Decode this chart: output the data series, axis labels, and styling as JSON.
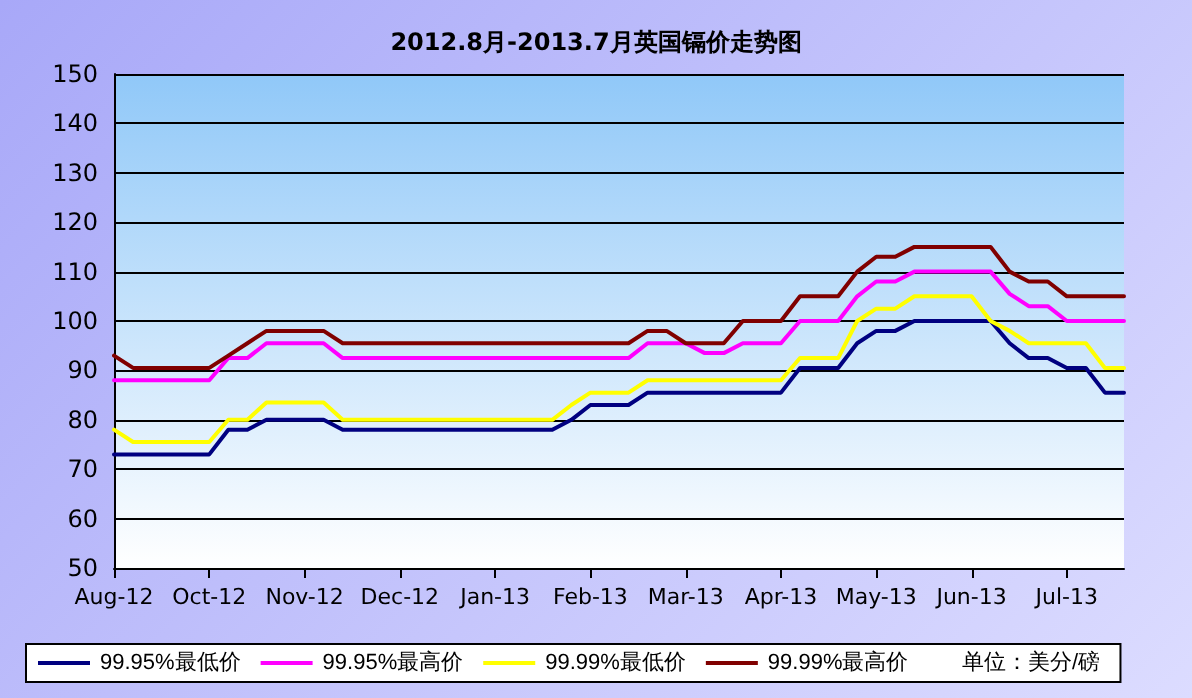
{
  "chart_data": {
    "type": "line",
    "title": "2012.8月-2013.7月英国镉价走势图",
    "categories": [
      "Aug-12",
      null,
      null,
      null,
      null,
      "Oct-12",
      null,
      null,
      null,
      null,
      "Nov-12",
      null,
      null,
      null,
      null,
      "Dec-12",
      null,
      null,
      null,
      null,
      "Jan-13",
      null,
      null,
      null,
      null,
      "Feb-13",
      null,
      null,
      null,
      null,
      "Mar-13",
      null,
      null,
      null,
      null,
      "Apr-13",
      null,
      null,
      null,
      null,
      "May-13",
      null,
      null,
      null,
      null,
      "Jun-13",
      null,
      null,
      null,
      null,
      "Jul-13",
      null,
      null,
      null
    ],
    "series": [
      {
        "name": "99.95%最低价",
        "color": "#000080",
        "values": [
          73,
          73,
          73,
          73,
          73,
          73,
          78,
          78,
          80,
          80,
          80,
          80,
          78,
          78,
          78,
          78,
          78,
          78,
          78,
          78,
          78,
          78,
          78,
          78,
          80,
          83,
          83,
          83,
          85.5,
          85.5,
          85.5,
          85.5,
          85.5,
          85.5,
          85.5,
          85.5,
          90.5,
          90.5,
          90.5,
          95.5,
          98,
          98,
          100,
          100,
          100,
          100,
          100,
          95.5,
          92.5,
          92.5,
          90.5,
          90.5,
          85.5,
          85.5
        ]
      },
      {
        "name": "99.95%最高价",
        "color": "#ff00ff",
        "values": [
          88,
          88,
          88,
          88,
          88,
          88,
          92.5,
          92.5,
          95.5,
          95.5,
          95.5,
          95.5,
          92.5,
          92.5,
          92.5,
          92.5,
          92.5,
          92.5,
          92.5,
          92.5,
          92.5,
          92.5,
          92.5,
          92.5,
          92.5,
          92.5,
          92.5,
          92.5,
          95.5,
          95.5,
          95.5,
          93.5,
          93.5,
          95.5,
          95.5,
          95.5,
          100,
          100,
          100,
          105,
          108,
          108,
          110,
          110,
          110,
          110,
          110,
          105.5,
          103,
          103,
          100,
          100,
          100,
          100
        ]
      },
      {
        "name": "99.99%最低价",
        "color": "#ffff00",
        "values": [
          78,
          75.5,
          75.5,
          75.5,
          75.5,
          75.5,
          80,
          80,
          83.5,
          83.5,
          83.5,
          83.5,
          80,
          80,
          80,
          80,
          80,
          80,
          80,
          80,
          80,
          80,
          80,
          80,
          83,
          85.5,
          85.5,
          85.5,
          88,
          88,
          88,
          88,
          88,
          88,
          88,
          88,
          92.5,
          92.5,
          92.5,
          100,
          102.5,
          102.5,
          105,
          105,
          105,
          105,
          100,
          98,
          95.5,
          95.5,
          95.5,
          95.5,
          90.5,
          90.5
        ]
      },
      {
        "name": "99.99%最高价",
        "color": "#800000",
        "values": [
          93,
          90.5,
          90.5,
          90.5,
          90.5,
          90.5,
          93,
          95.5,
          98,
          98,
          98,
          98,
          95.5,
          95.5,
          95.5,
          95.5,
          95.5,
          95.5,
          95.5,
          95.5,
          95.5,
          95.5,
          95.5,
          95.5,
          95.5,
          95.5,
          95.5,
          95.5,
          98,
          98,
          95.5,
          95.5,
          95.5,
          100,
          100,
          100,
          105,
          105,
          105,
          110,
          113,
          113,
          115,
          115,
          115,
          115,
          115,
          110,
          108,
          108,
          105,
          105,
          105,
          105
        ]
      }
    ],
    "ylim": [
      50,
      150
    ],
    "yticks": [
      50,
      60,
      70,
      80,
      90,
      100,
      110,
      120,
      130,
      140,
      150
    ],
    "grid": "y",
    "legend": "bottom",
    "marker": "none",
    "line_style": "solid",
    "annotations": [
      "单位：美分/磅"
    ]
  }
}
